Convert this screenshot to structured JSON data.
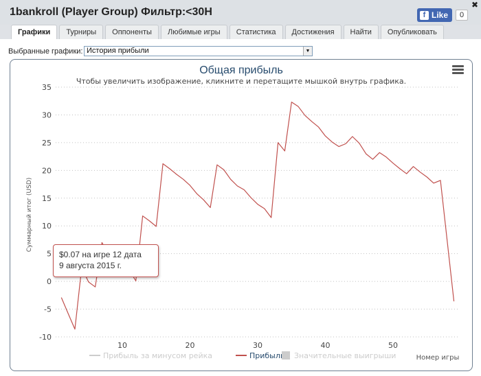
{
  "window": {
    "title": "1bankroll (Player Group) Фильтр:<30H"
  },
  "facebook": {
    "like_label": "Like",
    "count": "0"
  },
  "tabs": [
    {
      "label": "Графики",
      "active": true
    },
    {
      "label": "Турниры"
    },
    {
      "label": "Оппоненты"
    },
    {
      "label": "Любимые игры"
    },
    {
      "label": "Статистика"
    },
    {
      "label": "Достижения"
    },
    {
      "label": "Найти"
    },
    {
      "label": "Опубликовать"
    }
  ],
  "selector": {
    "label": "Выбранные графики:",
    "value": "История прибыли"
  },
  "tooltip": {
    "line1": "$0.07 на игре 12 дата",
    "line2": "9 августа 2015 г."
  },
  "chart_data": {
    "type": "line",
    "title": "Общая прибыль",
    "subtitle": "Чтобы увеличить изображение, кликните и перетащите мышкой внутрь графика.",
    "ylabel": "Суммарный итог (USD)",
    "xlabel": "Номер игры",
    "ylim": [
      -10,
      35
    ],
    "yticks": [
      -10,
      -5,
      0,
      5,
      10,
      15,
      20,
      25,
      30,
      35
    ],
    "xticks": [
      10,
      20,
      30,
      40,
      50
    ],
    "xlim": [
      1,
      59
    ],
    "grid": true,
    "line_color": "#c0504d",
    "legend_position": "bottom",
    "legend": [
      {
        "name": "Прибыль за минусом рейка",
        "color": "#cccccc",
        "symbol": "line"
      },
      {
        "name": "Прибыль",
        "color": "#c0504d",
        "symbol": "line"
      },
      {
        "name": "Значительные выигрыши",
        "color": "#cccccc",
        "symbol": "square"
      }
    ],
    "series": [
      {
        "name": "Прибыль",
        "x": [
          1,
          2,
          3,
          4,
          5,
          6,
          7,
          8,
          9,
          10,
          11,
          12,
          13,
          14,
          15,
          16,
          17,
          18,
          19,
          20,
          21,
          22,
          23,
          24,
          25,
          26,
          27,
          28,
          29,
          30,
          31,
          32,
          33,
          34,
          35,
          36,
          37,
          38,
          39,
          40,
          41,
          42,
          43,
          44,
          45,
          46,
          47,
          48,
          49,
          50,
          51,
          52,
          53,
          54,
          55,
          56,
          57,
          58,
          59
        ],
        "y": [
          -2.9,
          -5.8,
          -8.6,
          2.5,
          -0.1,
          -1,
          7,
          4.8,
          3.2,
          3,
          2.1,
          0.07,
          11.8,
          10.9,
          9.9,
          21.2,
          20.3,
          19.3,
          18.4,
          17.3,
          15.8,
          14.7,
          13.3,
          21,
          20.1,
          18.4,
          17.2,
          16.5,
          15.1,
          13.9,
          13.1,
          11.5,
          25,
          23.5,
          32.3,
          31.5,
          29.9,
          28.8,
          27.8,
          26.2,
          25.1,
          24.3,
          24.8,
          26.1,
          24.9,
          23,
          22,
          23.2,
          22.4,
          21.3,
          20.3,
          19.4,
          20.7,
          19.7,
          18.8,
          17.7,
          18.2,
          7.3,
          -3.6
        ]
      }
    ]
  }
}
